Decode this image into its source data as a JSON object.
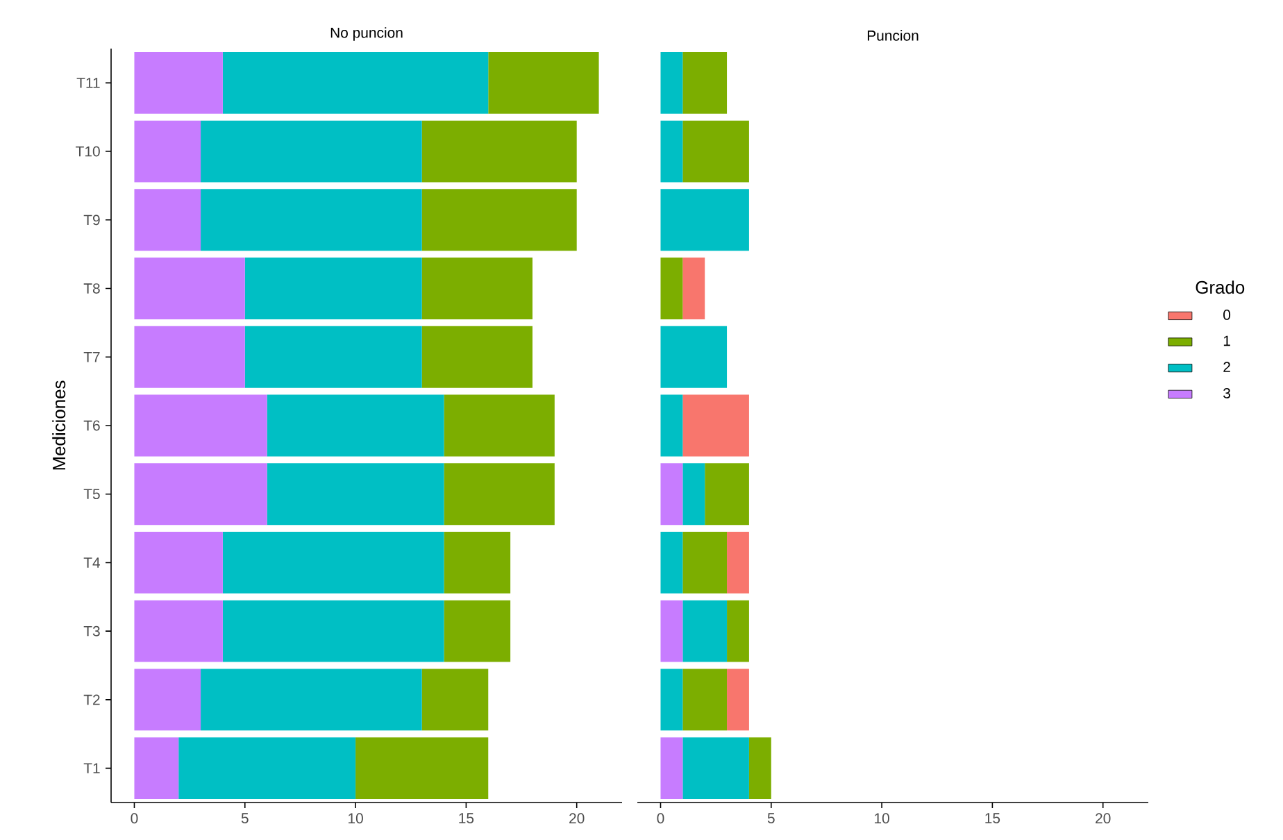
{
  "chart_data": [
    {
      "type": "bar",
      "orientation": "horizontal",
      "stacked": true,
      "title": "No puncion",
      "ylabel": "Mediciones",
      "categories": [
        "T11",
        "T10",
        "T9",
        "T8",
        "T7",
        "T6",
        "T5",
        "T4",
        "T3",
        "T2",
        "T1"
      ],
      "xlim": [
        -1.05,
        22.05
      ],
      "xticks": [
        0,
        5,
        10,
        15,
        20
      ],
      "grid": false,
      "legend": false,
      "series": [
        {
          "color": "#c77cff",
          "values": [
            4,
            3,
            3,
            5,
            5,
            6,
            6,
            4,
            4,
            3,
            2
          ]
        },
        {
          "color": "#00bfc4",
          "values": [
            12,
            10,
            10,
            8,
            8,
            8,
            8,
            10,
            10,
            10,
            8
          ]
        },
        {
          "color": "#7cae00",
          "values": [
            5,
            7,
            7,
            5,
            5,
            5,
            5,
            3,
            3,
            3,
            6
          ]
        }
      ]
    },
    {
      "type": "bar",
      "orientation": "horizontal",
      "stacked": true,
      "title": "Puncion",
      "legend_title": "Grado",
      "categories": [
        null,
        null,
        null,
        null,
        null,
        null,
        null,
        null,
        null,
        null,
        null
      ],
      "xlim": [
        -1.05,
        22.05
      ],
      "xticks": [
        0,
        5,
        10,
        15,
        20
      ],
      "grid": false,
      "legend": "right",
      "tick_labels": "x",
      "series": [
        {
          "name": "3",
          "color": "#c77cff",
          "values": [
            0,
            0,
            0,
            0,
            0,
            0,
            1,
            0,
            1,
            0,
            1
          ]
        },
        {
          "name": "2",
          "color": "#00bfc4",
          "values": [
            1,
            1,
            4,
            0,
            3,
            1,
            1,
            1,
            2,
            1,
            3
          ]
        },
        {
          "name": "1",
          "color": "#7cae00",
          "values": [
            2,
            3,
            0,
            1,
            0,
            0,
            2,
            2,
            1,
            2,
            1
          ]
        },
        {
          "name": "0",
          "color": "#f8766d",
          "values": [
            0,
            0,
            0,
            1,
            0,
            3,
            0,
            1,
            0,
            1,
            0
          ]
        }
      ]
    }
  ]
}
